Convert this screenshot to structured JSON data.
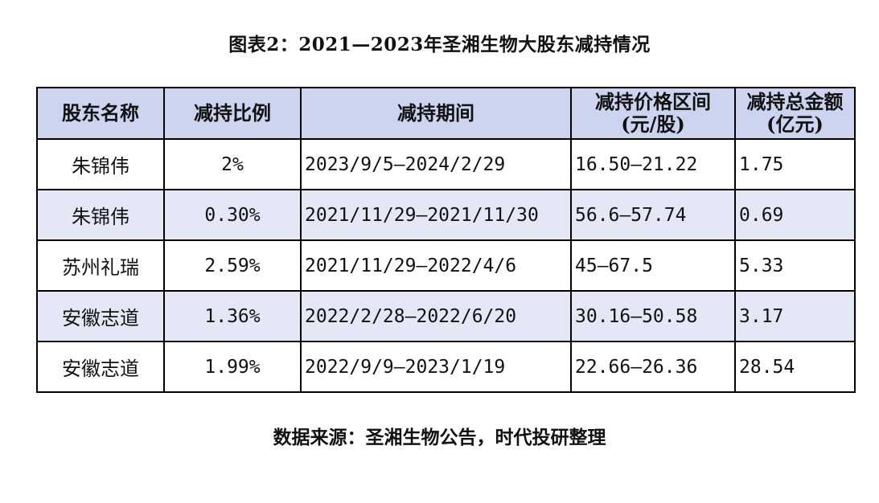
{
  "title": "图表2：2021—2023年圣湘生物大股东减持情况",
  "table": {
    "headers": {
      "shareholder": "股东名称",
      "ratio": "减持比例",
      "period": "减持期间",
      "price_line1": "减持价格区间",
      "price_line2": "(元/股)",
      "amount_line1": "减持总金额",
      "amount_line2": "(亿元)"
    },
    "rows": [
      {
        "shareholder": "朱锦伟",
        "ratio": "2%",
        "period": "2023/9/5—2024/2/29",
        "price": "16.50—21.22",
        "amount": "1.75"
      },
      {
        "shareholder": "朱锦伟",
        "ratio": "0.30%",
        "period": "2021/11/29—2021/11/30",
        "price": "56.6—57.74",
        "amount": "0.69"
      },
      {
        "shareholder": "苏州礼瑞",
        "ratio": "2.59%",
        "period": "2021/11/29—2022/4/6",
        "price": "45—67.5",
        "amount": "5.33"
      },
      {
        "shareholder": "安徽志道",
        "ratio": "1.36%",
        "period": "2022/2/28—2022/6/20",
        "price": "30.16—50.58",
        "amount": "3.17"
      },
      {
        "shareholder": "安徽志道",
        "ratio": "1.99%",
        "period": "2022/9/9—2023/1/19",
        "price": "22.66—26.36",
        "amount": "28.54"
      }
    ]
  },
  "source": "数据来源：圣湘生物公告，时代投研整理",
  "colors": {
    "header_bg": "#ccd4f0",
    "shaded_row_bg": "#e4e8f6",
    "border": "#000000"
  }
}
